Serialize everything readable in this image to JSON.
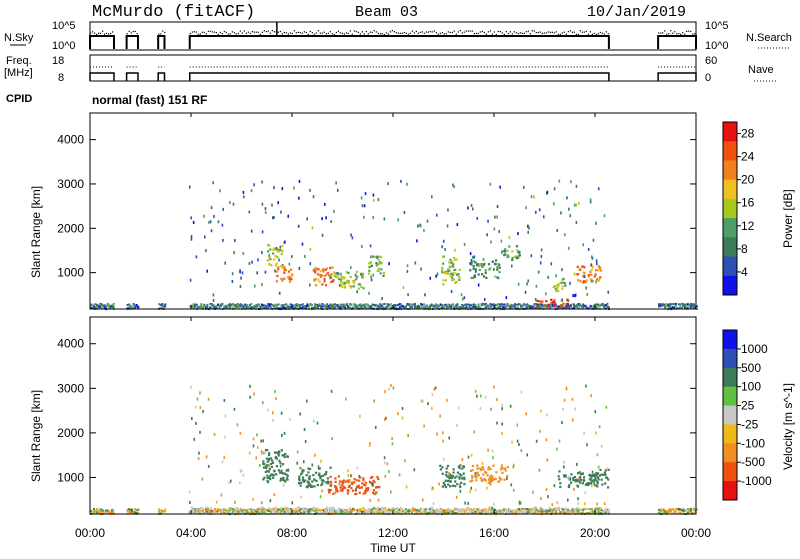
{
  "header": {
    "station": "McMurdo (fitACF)",
    "beam": "Beam 03",
    "date": "10/Jan/2019"
  },
  "top_panels": {
    "nsky_label": "N.Sky",
    "nsky_ticks": [
      "10^5",
      "10^0"
    ],
    "nsearch_label": "N.Search",
    "nsearch_ticks": [
      "10^5",
      "10^0"
    ],
    "freq_label": "Freq.",
    "freq_unit": "[MHz]",
    "freq_ticks": [
      "18",
      "8"
    ],
    "nave_label": "Nave",
    "nave_ticks": [
      "60",
      "0"
    ],
    "cpid_label": "CPID",
    "cpid_value": "normal (fast) 151 RF"
  },
  "colors": {
    "power_scale": [
      "#1010e8",
      "#2c50b4",
      "#3c7a58",
      "#4e9e68",
      "#a8c820",
      "#f0c020",
      "#f08020",
      "#f05010",
      "#e81010"
    ],
    "velocity_scale": [
      "#e81010",
      "#f05010",
      "#f09020",
      "#f0b818",
      "#c8c8c8",
      "#60c040",
      "#3c7a58",
      "#2c50b4",
      "#1010e8"
    ]
  },
  "chart_data": [
    {
      "type": "heatmap",
      "title": "",
      "xlabel": "Time UT",
      "ylabel": "Slant Range [km]",
      "x_ticks": [
        "00:00",
        "04:00",
        "08:00",
        "12:00",
        "16:00",
        "20:00",
        "00:00"
      ],
      "xlim_hours": [
        0,
        24
      ],
      "y_ticks": [
        "1000",
        "2000",
        "3000",
        "4000"
      ],
      "ylim_km": [
        180,
        4600
      ],
      "colorbar_label": "Power [dB]",
      "colorbar_ticks": [
        "4",
        "8",
        "12",
        "16",
        "20",
        "24",
        "28"
      ],
      "colorbar_range": [
        0,
        30
      ],
      "echo_regions": [
        {
          "t": [
            7.0,
            7.6
          ],
          "r": [
            1150,
            1650
          ],
          "value": 16
        },
        {
          "t": [
            7.3,
            8.0
          ],
          "r": [
            800,
            1150
          ],
          "value": 22
        },
        {
          "t": [
            8.8,
            9.6
          ],
          "r": [
            700,
            1150
          ],
          "value": 22
        },
        {
          "t": [
            9.6,
            10.8
          ],
          "r": [
            650,
            1050
          ],
          "value": 14
        },
        {
          "t": [
            11.0,
            11.6
          ],
          "r": [
            950,
            1400
          ],
          "value": 12
        },
        {
          "t": [
            13.9,
            14.6
          ],
          "r": [
            750,
            1400
          ],
          "value": 14
        },
        {
          "t": [
            15.0,
            16.2
          ],
          "r": [
            900,
            1300
          ],
          "value": 10
        },
        {
          "t": [
            16.3,
            17.0
          ],
          "r": [
            1300,
            1650
          ],
          "value": 12
        },
        {
          "t": [
            18.3,
            18.8
          ],
          "r": [
            600,
            900
          ],
          "value": 14
        },
        {
          "t": [
            19.2,
            20.2
          ],
          "r": [
            800,
            1200
          ],
          "value": 22
        },
        {
          "t": [
            17.6,
            18.9
          ],
          "r": [
            250,
            420
          ],
          "value": 28
        }
      ]
    },
    {
      "type": "heatmap",
      "title": "",
      "xlabel": "Time UT",
      "ylabel": "Slant Range [km]",
      "x_ticks": [
        "00:00",
        "04:00",
        "08:00",
        "12:00",
        "16:00",
        "20:00",
        "00:00"
      ],
      "xlim_hours": [
        0,
        24
      ],
      "y_ticks": [
        "1000",
        "2000",
        "3000",
        "4000"
      ],
      "ylim_km": [
        180,
        4600
      ],
      "colorbar_label": "Velocity [m s^-1]",
      "colorbar_ticks": [
        "1000",
        "500",
        "100",
        "25",
        "-25",
        "-100",
        "-500",
        "-1000"
      ],
      "echo_regions": [
        {
          "t": [
            6.8,
            7.8
          ],
          "r": [
            900,
            1650
          ],
          "value": 100
        },
        {
          "t": [
            8.2,
            9.5
          ],
          "r": [
            800,
            1250
          ],
          "value": 100
        },
        {
          "t": [
            9.4,
            11.5
          ],
          "r": [
            650,
            1050
          ],
          "value": -500
        },
        {
          "t": [
            13.8,
            14.8
          ],
          "r": [
            800,
            1300
          ],
          "value": 100
        },
        {
          "t": [
            15.0,
            16.5
          ],
          "r": [
            900,
            1300
          ],
          "value": -100
        },
        {
          "t": [
            18.5,
            20.5
          ],
          "r": [
            800,
            1200
          ],
          "value": 100
        },
        {
          "t": [
            3.8,
            20.5
          ],
          "r": [
            200,
            350
          ],
          "value": 0
        }
      ]
    }
  ]
}
